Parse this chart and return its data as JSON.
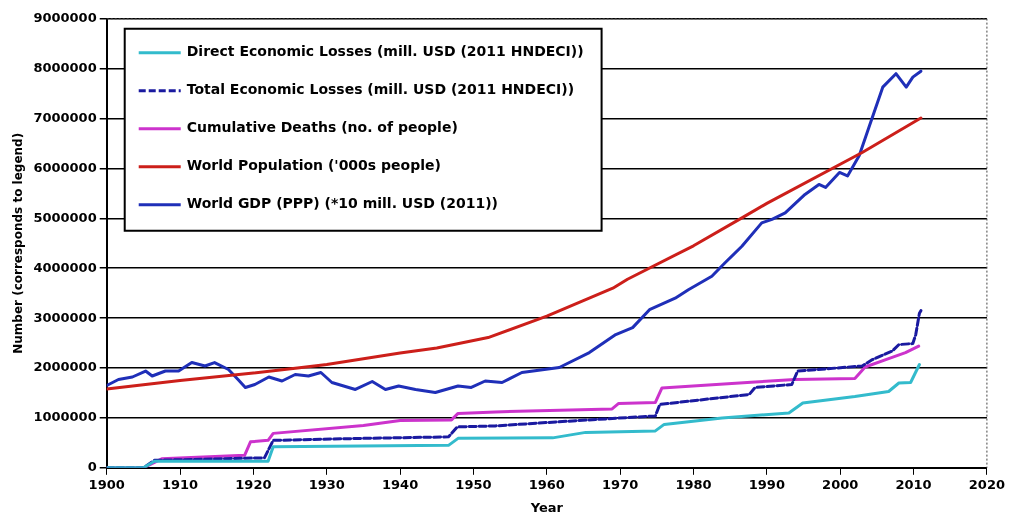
{
  "chart_data": {
    "type": "line",
    "xlabel": "Year",
    "ylabel": "Number (corresponds to legend)",
    "xlim": [
      1900,
      2020
    ],
    "xticks": [
      1900,
      1910,
      1920,
      1930,
      1940,
      1950,
      1960,
      1970,
      1980,
      1990,
      2000,
      2010,
      2020
    ],
    "ylim": [
      0,
      9000000
    ],
    "yticks": [
      0,
      1000000,
      2000000,
      3000000,
      4000000,
      5000000,
      6000000,
      7000000,
      8000000,
      9000000
    ],
    "grid": "y",
    "legend": "top left",
    "marker": "none",
    "series": [
      {
        "name": "Direct Economic Losses (mill. USD (2011 HNDECI))",
        "color": "#33bbcc",
        "x": [
          1900,
          1905,
          1906.5,
          1922,
          1922.7,
          1946.6,
          1947.9,
          1960.8,
          1965.3,
          1974.8,
          1976,
          1983.9,
          1993,
          1994.9,
          2002,
          2006.6,
          2008,
          2009.6,
          2010.8
        ],
        "values": [
          0,
          0,
          130000,
          130000,
          420000,
          450000,
          590000,
          600000,
          710000,
          740000,
          870000,
          1000000,
          1100000,
          1300000,
          1430000,
          1530000,
          1700000,
          1710000,
          2070000
        ]
      },
      {
        "name": "Total Economic Losses (mill. USD (2011 HNDECI))",
        "color": "#1a1aa0",
        "line_style": "dashed",
        "x": [
          1900,
          1905,
          1906.5,
          1921.5,
          1922.7,
          1935,
          1946.6,
          1947.8,
          1953,
          1963.5,
          1974.8,
          1975.4,
          1987.6,
          1988.4,
          1993.4,
          1994.2,
          2003,
          2004.4,
          2007.1,
          2008,
          2009.9,
          2010.3,
          2010.8,
          2011
        ],
        "values": [
          0,
          0,
          150000,
          200000,
          550000,
          590000,
          620000,
          820000,
          840000,
          940000,
          1040000,
          1270000,
          1470000,
          1610000,
          1670000,
          1940000,
          2040000,
          2170000,
          2340000,
          2470000,
          2490000,
          2670000,
          3100000,
          3150000
        ]
      },
      {
        "name": "Cumulative Deaths (no. of people)",
        "color": "#cc33cc",
        "x": [
          1900,
          1905,
          1907.5,
          1918.8,
          1919.6,
          1922,
          1922.7,
          1935,
          1940,
          1947,
          1947.9,
          1953,
          1968.9,
          1969.8,
          1974.8,
          1975.7,
          1988.4,
          1993.8,
          2002,
          2003.4,
          2006.6,
          2008.9,
          2010.7
        ],
        "values": [
          0,
          0,
          180000,
          250000,
          520000,
          550000,
          690000,
          850000,
          950000,
          960000,
          1090000,
          1120000,
          1180000,
          1290000,
          1310000,
          1600000,
          1720000,
          1770000,
          1790000,
          2020000,
          2190000,
          2310000,
          2440000
        ]
      },
      {
        "name": "World Population ('000s people)",
        "color": "#cc1f1a",
        "x": [
          1900,
          1910,
          1920,
          1926,
          1930,
          1940,
          1945,
          1952,
          1960,
          1969,
          1971,
          1980,
          1986.6,
          1990,
          2003,
          2011
        ],
        "values": [
          1580000,
          1750000,
          1900000,
          2000000,
          2070000,
          2300000,
          2400000,
          2610000,
          3040000,
          3600000,
          3780000,
          4450000,
          5010000,
          5300000,
          6320000,
          7010000
        ]
      },
      {
        "name": "World GDP (PPP) (*10 mill. USD (2011))",
        "color": "#1f2fb8",
        "x": [
          1900,
          1901.6,
          1903.5,
          1905.3,
          1906.2,
          1908,
          1909.8,
          1911.6,
          1913.4,
          1914.7,
          1916.6,
          1917.9,
          1918.9,
          1920.2,
          1922.1,
          1923.9,
          1925.7,
          1927.5,
          1929.2,
          1930.7,
          1933.9,
          1936.2,
          1938,
          1939.8,
          1942.1,
          1944.8,
          1947.9,
          1949.7,
          1951.6,
          1953.9,
          1956.6,
          1961.7,
          1965.8,
          1969.4,
          1971.7,
          1974,
          1977.5,
          1979.3,
          1982.5,
          1984.3,
          1986.6,
          1989.3,
          1990.7,
          1992.5,
          1995.2,
          1997.1,
          1998,
          1999.9,
          2001,
          2002.6,
          2004,
          2005.8,
          2007.6,
          2009,
          2009.9,
          2011
        ],
        "values": [
          1650000,
          1770000,
          1820000,
          1940000,
          1840000,
          1940000,
          1940000,
          2110000,
          2040000,
          2110000,
          1970000,
          1770000,
          1610000,
          1670000,
          1820000,
          1740000,
          1870000,
          1840000,
          1910000,
          1710000,
          1570000,
          1730000,
          1570000,
          1640000,
          1570000,
          1510000,
          1640000,
          1610000,
          1740000,
          1710000,
          1910000,
          2010000,
          2310000,
          2670000,
          2810000,
          3170000,
          3400000,
          3570000,
          3840000,
          4110000,
          4440000,
          4910000,
          4980000,
          5110000,
          5480000,
          5680000,
          5620000,
          5920000,
          5850000,
          6260000,
          6860000,
          7630000,
          7900000,
          7630000,
          7830000,
          7950000
        ]
      }
    ]
  }
}
